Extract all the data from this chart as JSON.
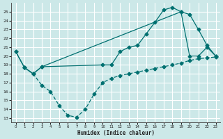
{
  "xlabel": "Humidex (Indice chaleur)",
  "bg_color": "#cce8e8",
  "grid_color": "#ffffff",
  "line_color": "#007070",
  "xlim": [
    -0.5,
    23.5
  ],
  "ylim": [
    12.5,
    26.0
  ],
  "yticks": [
    13,
    14,
    15,
    16,
    17,
    18,
    19,
    20,
    21,
    22,
    23,
    24,
    25
  ],
  "xticks": [
    0,
    1,
    2,
    3,
    4,
    5,
    6,
    7,
    8,
    9,
    10,
    11,
    12,
    13,
    14,
    15,
    16,
    17,
    18,
    19,
    20,
    21,
    22,
    23
  ],
  "line1_x": [
    0,
    1,
    2,
    3,
    19,
    20,
    21,
    22,
    23
  ],
  "line1_y": [
    20.5,
    18.7,
    18.0,
    18.8,
    25.0,
    20.0,
    20.0,
    21.0,
    20.0
  ],
  "line2_x": [
    0,
    1,
    2,
    3,
    10,
    11,
    12,
    13,
    14,
    15,
    16,
    17,
    18,
    19,
    20,
    21,
    22,
    23
  ],
  "line2_y": [
    20.5,
    18.7,
    18.0,
    18.8,
    19.0,
    19.0,
    20.5,
    21.0,
    21.2,
    22.5,
    23.8,
    25.2,
    25.5,
    25.0,
    24.7,
    23.0,
    21.2,
    20.0
  ],
  "line3_x": [
    1,
    2,
    3,
    4,
    5,
    6,
    7,
    8,
    9,
    10,
    11,
    12,
    13,
    14,
    15,
    16,
    17,
    18,
    19,
    20,
    21,
    22,
    23
  ],
  "line3_y": [
    18.7,
    18.0,
    16.7,
    16.0,
    14.4,
    13.3,
    13.1,
    14.0,
    15.7,
    17.0,
    17.5,
    17.8,
    18.0,
    18.2,
    18.4,
    18.6,
    18.8,
    19.0,
    19.2,
    19.5,
    19.7,
    19.8,
    19.9
  ]
}
